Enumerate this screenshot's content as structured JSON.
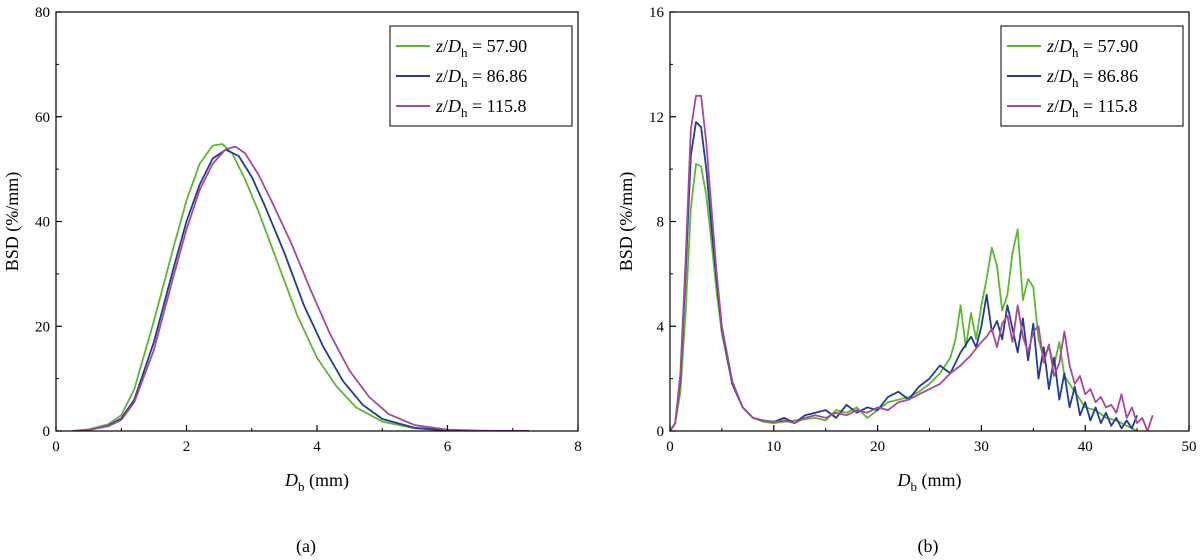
{
  "captions": [
    "(a)",
    "(b)"
  ],
  "legend_entries": [
    {
      "var1": "z",
      "var2": "D",
      "sub": "h",
      "eq": " = 57.90"
    },
    {
      "var1": "z",
      "var2": "D",
      "sub": "h",
      "eq": " = 86.86"
    },
    {
      "var1": "z",
      "var2": "D",
      "sub": "h",
      "eq": " = 115.8"
    }
  ],
  "xlabel": {
    "var": "D",
    "sub": "b",
    "rest": " (mm)"
  },
  "ylabel": "BSD (%/mm)",
  "colors": {
    "series1": "#5cb82e",
    "series2": "#1f3c96",
    "series3": "#a8489a",
    "axis": "#000000"
  },
  "chart_data": [
    {
      "type": "line",
      "panel": "(a)",
      "xlabel": "Db (mm)",
      "ylabel": "BSD (%/mm)",
      "xlim": [
        0,
        8
      ],
      "ylim": [
        0,
        80
      ],
      "xticks": [
        0,
        2,
        4,
        6,
        8
      ],
      "yticks": [
        0,
        20,
        40,
        60,
        80
      ],
      "legend_position": "top-right",
      "grid": false,
      "series": [
        {
          "name": "z/Dh = 57.90",
          "color": "#5cb82e",
          "x": [
            0.25,
            0.5,
            0.8,
            1.0,
            1.2,
            1.5,
            1.8,
            2.0,
            2.2,
            2.4,
            2.55,
            2.7,
            2.9,
            3.1,
            3.4,
            3.7,
            4.0,
            4.3,
            4.6,
            5.0,
            5.5,
            6.0,
            6.5,
            7.0,
            7.25
          ],
          "y": [
            0,
            0.3,
            1.3,
            3,
            8,
            21,
            35,
            44,
            51,
            54.5,
            54.8,
            53,
            48,
            42,
            32,
            22,
            14,
            8.5,
            4.5,
            1.8,
            0.5,
            0.1,
            0,
            0,
            0
          ]
        },
        {
          "name": "z/Dh = 86.86",
          "color": "#1f3c96",
          "x": [
            0.25,
            0.5,
            0.8,
            1.0,
            1.2,
            1.5,
            1.8,
            2.0,
            2.2,
            2.4,
            2.6,
            2.8,
            3.0,
            3.2,
            3.5,
            3.8,
            4.1,
            4.4,
            4.7,
            5.0,
            5.5,
            6.0,
            6.5,
            7.0,
            7.25
          ],
          "y": [
            0,
            0.2,
            1.0,
            2.4,
            6,
            17,
            31,
            40,
            47,
            52,
            53.7,
            52.5,
            48.5,
            43,
            34,
            24,
            16,
            9.5,
            5,
            2.3,
            0.6,
            0.15,
            0,
            0,
            0
          ]
        },
        {
          "name": "z/Dh = 115.8",
          "color": "#a8489a",
          "x": [
            0.25,
            0.5,
            0.8,
            1.0,
            1.2,
            1.5,
            1.8,
            2.0,
            2.2,
            2.4,
            2.6,
            2.75,
            2.9,
            3.1,
            3.3,
            3.6,
            3.9,
            4.2,
            4.5,
            4.8,
            5.1,
            5.5,
            6.0,
            6.5,
            7.0,
            7.25
          ],
          "y": [
            0,
            0.2,
            0.9,
            2.1,
            5.5,
            15.5,
            29.5,
            38.5,
            46,
            51,
            53.8,
            54.3,
            53,
            49,
            44,
            36,
            27,
            18.5,
            11.5,
            6.5,
            3.2,
            1.1,
            0.25,
            0.05,
            0,
            0
          ]
        }
      ]
    },
    {
      "type": "line",
      "panel": "(b)",
      "xlabel": "Db (mm)",
      "ylabel": "BSD (%/mm)",
      "xlim": [
        0,
        50
      ],
      "ylim": [
        0,
        16
      ],
      "xticks": [
        0,
        10,
        20,
        30,
        40,
        50
      ],
      "yticks": [
        0,
        4,
        8,
        12,
        16
      ],
      "legend_position": "top-right",
      "grid": false,
      "series": [
        {
          "name": "z/Dh = 57.90",
          "color": "#5cb82e",
          "x": [
            0,
            0.5,
            1,
            1.5,
            2,
            2.5,
            3,
            3.5,
            4,
            4.5,
            5,
            6,
            7,
            8,
            9,
            10,
            12,
            14,
            15,
            16,
            17,
            18,
            19,
            20,
            21,
            22,
            23,
            24,
            25,
            26,
            27,
            27.5,
            28,
            28.5,
            29,
            29.5,
            30,
            30.5,
            31,
            31.5,
            32,
            32.5,
            33,
            33.5,
            34,
            34.5,
            35,
            35.5,
            36,
            36.5,
            37,
            37.5,
            38,
            38.5,
            39,
            40,
            41,
            42,
            43,
            44,
            45
          ],
          "y": [
            0,
            0.3,
            1.5,
            4.5,
            8.5,
            10.2,
            10.1,
            9,
            7.2,
            5.3,
            3.7,
            1.8,
            0.9,
            0.5,
            0.35,
            0.3,
            0.4,
            0.5,
            0.4,
            0.8,
            0.7,
            0.9,
            0.5,
            0.8,
            1.1,
            1.2,
            1.3,
            1.5,
            1.8,
            2.2,
            2.8,
            3.5,
            4.8,
            3.2,
            4.5,
            3.5,
            4.8,
            5.8,
            7.0,
            6.3,
            4.6,
            5.2,
            6.8,
            7.7,
            5.0,
            5.8,
            5.5,
            3.5,
            2.8,
            3.2,
            2.5,
            3.4,
            2.1,
            1.8,
            1.5,
            0.9,
            0.8,
            0.5,
            0.4,
            0.2,
            0
          ]
        },
        {
          "name": "z/Dh = 86.86",
          "color": "#1f3c96",
          "x": [
            0,
            0.5,
            1,
            1.5,
            2,
            2.5,
            3,
            3.5,
            4,
            4.5,
            5,
            6,
            7,
            8,
            9,
            10,
            11,
            12,
            13,
            14,
            15,
            16,
            17,
            18,
            19,
            20,
            21,
            22,
            23,
            24,
            25,
            26,
            27,
            28,
            29,
            29.5,
            30,
            30.5,
            31,
            31.5,
            32,
            32.5,
            33,
            33.5,
            34,
            34.5,
            35,
            35.5,
            36,
            36.5,
            37,
            37.5,
            38,
            38.5,
            39,
            39.5,
            40,
            40.5,
            41,
            41.5,
            42,
            42.5,
            43,
            43.5,
            44,
            44.5,
            45
          ],
          "y": [
            0,
            0.3,
            2,
            6,
            10.5,
            11.8,
            11.6,
            10,
            7.8,
            5.7,
            3.9,
            1.8,
            0.9,
            0.5,
            0.4,
            0.35,
            0.5,
            0.3,
            0.6,
            0.7,
            0.8,
            0.5,
            1.0,
            0.7,
            0.9,
            0.8,
            1.3,
            1.5,
            1.2,
            1.7,
            2.0,
            2.5,
            2.2,
            3.0,
            3.6,
            3.2,
            4.0,
            5.2,
            3.8,
            4.2,
            3.5,
            4.8,
            3.9,
            3.0,
            4.3,
            2.7,
            4.1,
            2.0,
            3.2,
            1.6,
            2.8,
            1.2,
            2.2,
            0.9,
            1.7,
            0.6,
            1.1,
            0.4,
            0.9,
            0.3,
            0.7,
            0.2,
            0.5,
            0.1,
            0.4,
            0.1,
            0.6
          ]
        },
        {
          "name": "z/Dh = 115.8",
          "color": "#a8489a",
          "x": [
            0,
            0.5,
            1,
            1.5,
            2,
            2.5,
            3,
            3.5,
            4,
            4.5,
            5,
            6,
            7,
            8,
            9,
            10,
            11,
            12,
            13,
            14,
            15,
            16,
            17,
            18,
            19,
            20,
            21,
            22,
            23,
            24,
            25,
            26,
            27,
            28,
            29,
            30,
            30.5,
            31,
            31.5,
            32,
            32.5,
            33,
            33.5,
            34,
            34.5,
            35,
            35.5,
            36,
            36.5,
            37,
            37.5,
            38,
            38.5,
            39,
            39.5,
            40,
            40.5,
            41,
            41.5,
            42,
            42.5,
            43,
            43.5,
            44,
            44.5,
            45,
            45.5,
            46,
            46.5
          ],
          "y": [
            0,
            0.3,
            2.2,
            6.5,
            11.5,
            12.8,
            12.8,
            11,
            8.5,
            6,
            4.0,
            1.9,
            0.9,
            0.5,
            0.4,
            0.35,
            0.4,
            0.3,
            0.5,
            0.6,
            0.5,
            0.7,
            0.6,
            0.8,
            0.7,
            0.9,
            0.8,
            1.1,
            1.2,
            1.4,
            1.6,
            1.8,
            2.2,
            2.5,
            2.9,
            3.4,
            3.6,
            3.9,
            3.2,
            4.1,
            4.4,
            3.4,
            4.8,
            3.6,
            3.0,
            3.8,
            4.0,
            2.6,
            3.3,
            2.1,
            2.6,
            3.8,
            2.5,
            1.8,
            2.1,
            1.4,
            1.6,
            1.1,
            1.3,
            0.9,
            1.0,
            0.7,
            1.4,
            0.5,
            0.9,
            0.3,
            0.5,
            0.0,
            0.6
          ]
        }
      ]
    }
  ]
}
